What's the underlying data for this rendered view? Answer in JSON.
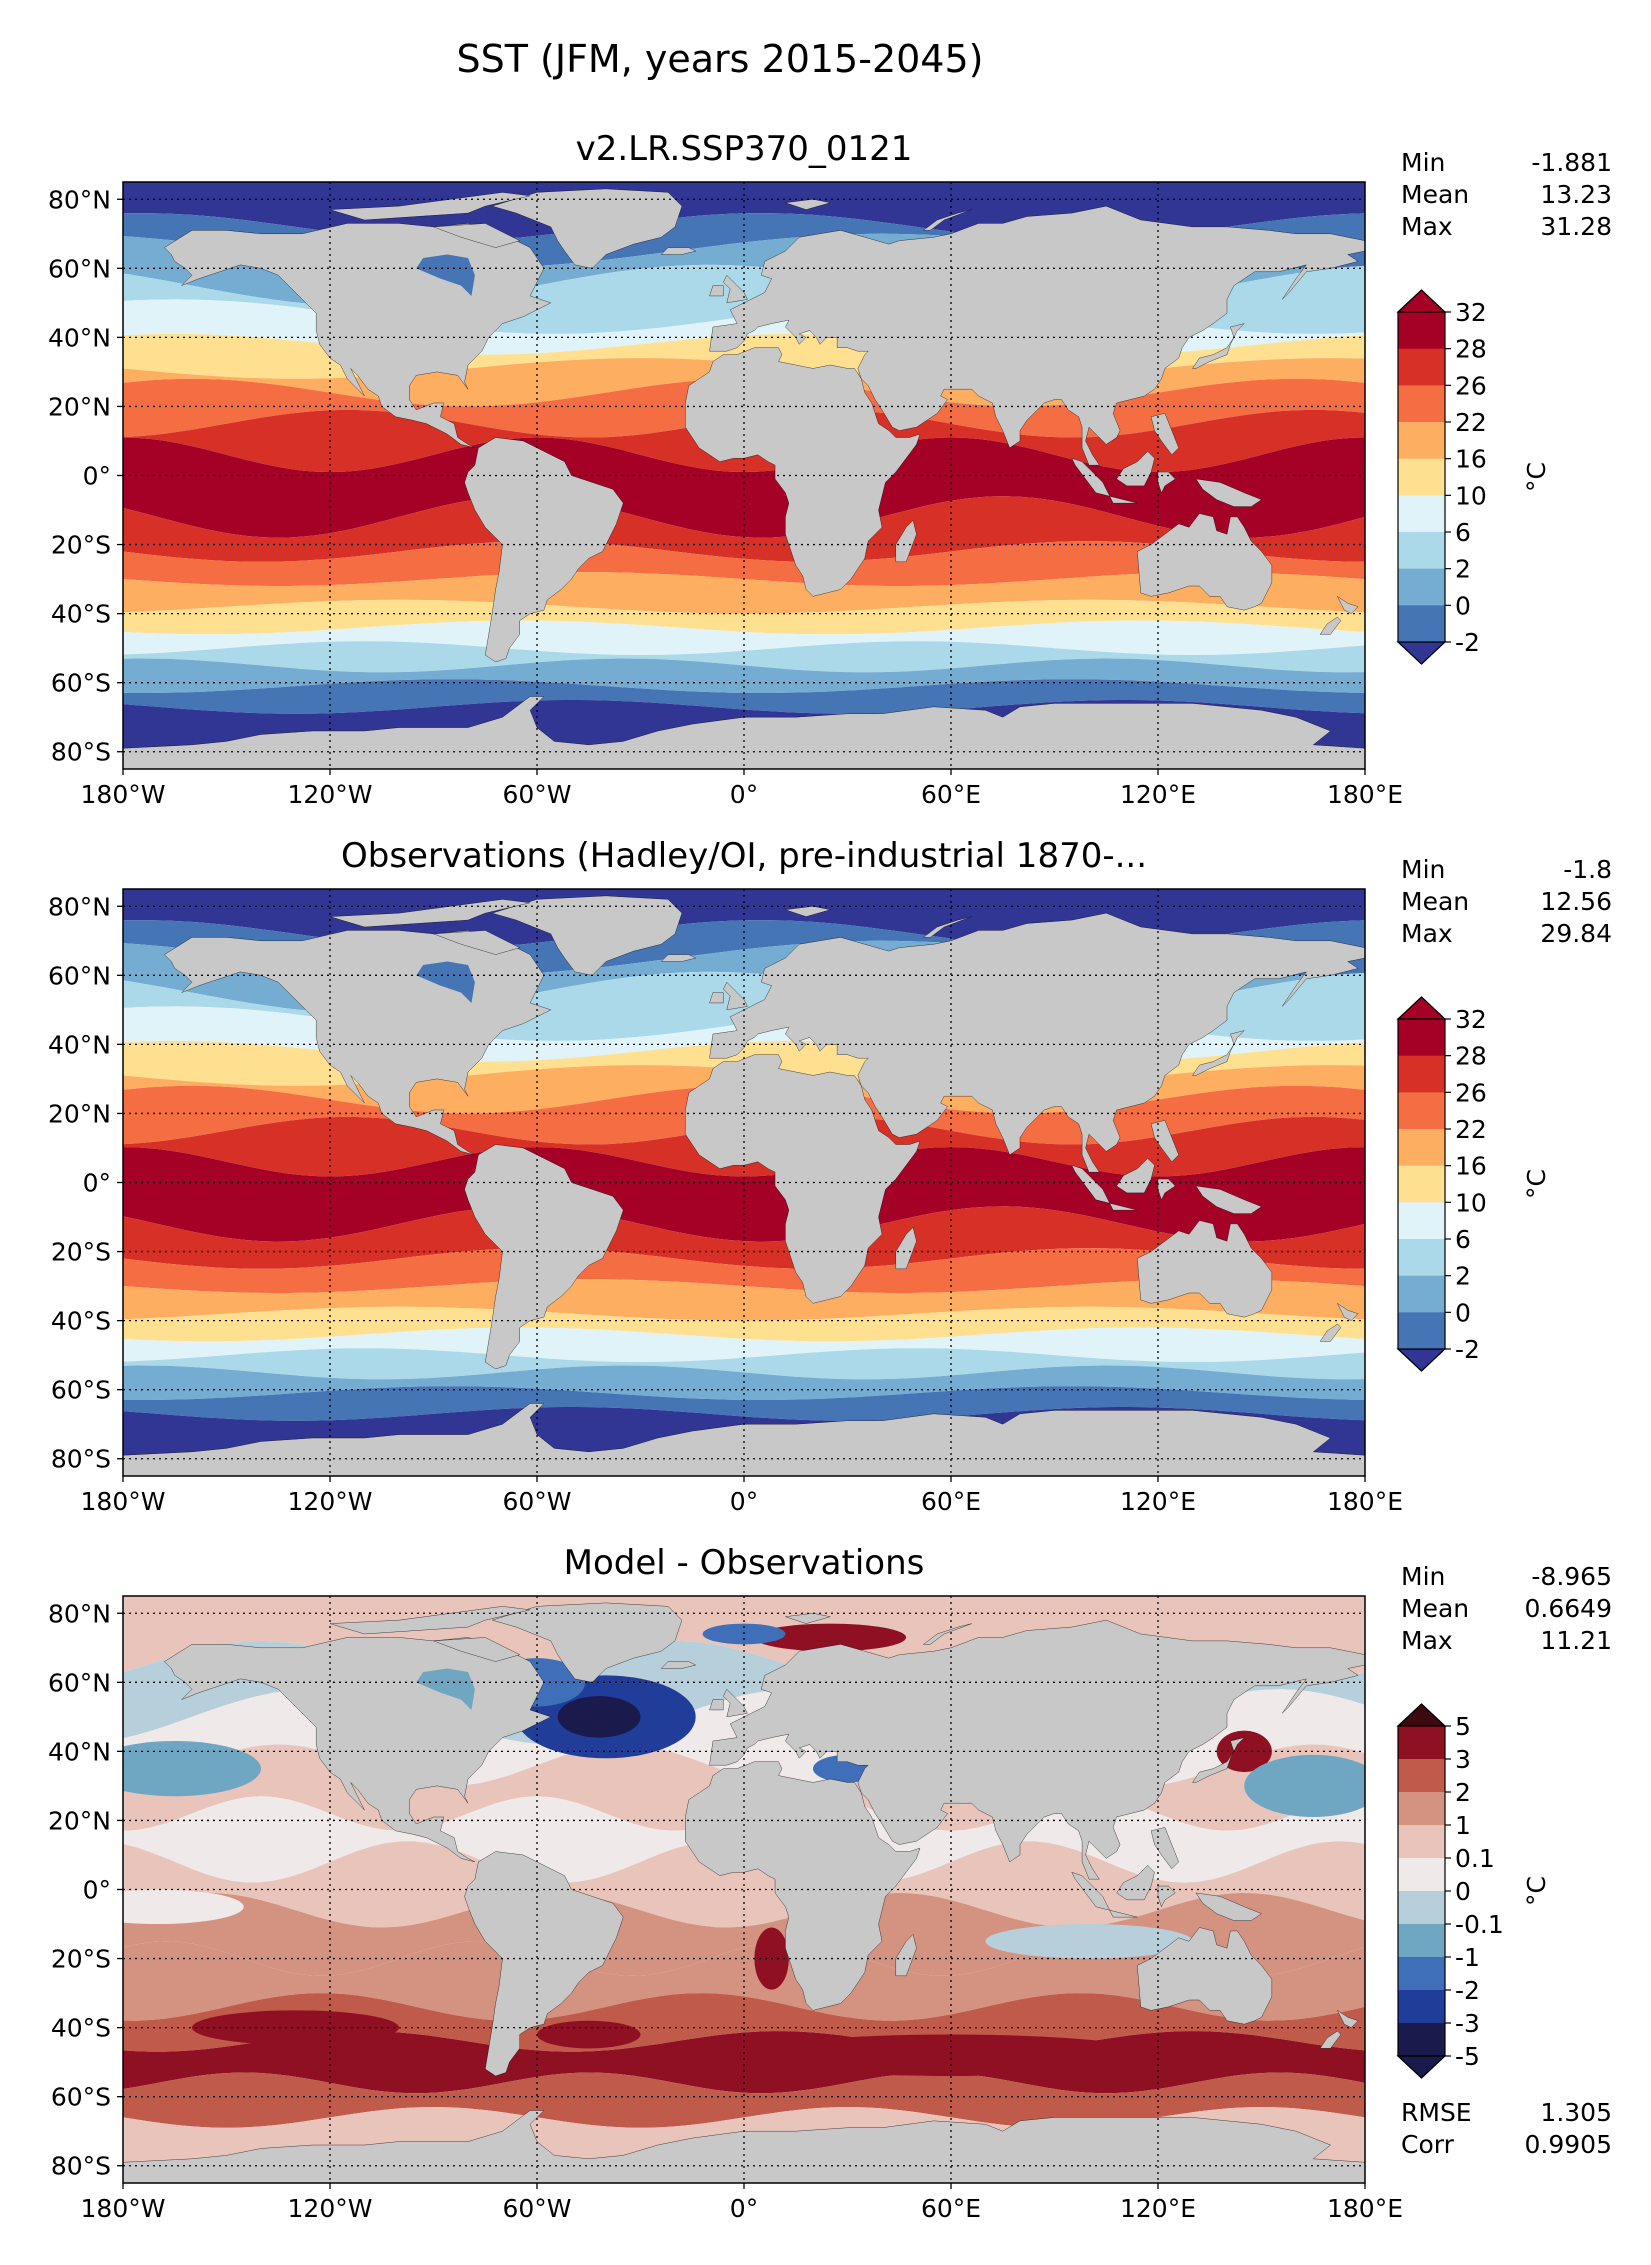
{
  "figure": {
    "title": "SST (JFM, years 2015-2045)"
  },
  "axes": {
    "lon_ticks": [
      "180°W",
      "120°W",
      "60°W",
      "0°",
      "60°E",
      "120°E",
      "180°E"
    ],
    "lat_ticks": [
      "80°N",
      "60°N",
      "40°N",
      "20°N",
      "0°",
      "20°S",
      "40°S",
      "60°S",
      "80°S"
    ],
    "lon_values": [
      -180,
      -120,
      -60,
      0,
      60,
      120,
      180
    ],
    "lat_values": [
      80,
      60,
      40,
      20,
      0,
      -20,
      -40,
      -60,
      -80
    ],
    "xlim": [
      -180,
      180
    ],
    "ylim": [
      -85,
      85
    ],
    "grid": "dotted"
  },
  "colors": {
    "land": "#c8c8c8",
    "sst_levels": [
      "#313695",
      "#4575b4",
      "#74add1",
      "#abd9e9",
      "#e0f3f8",
      "#fee090",
      "#fdae61",
      "#f46d43",
      "#d73027",
      "#a50026"
    ],
    "diff_levels": [
      "#1a1a4d",
      "#1f3d99",
      "#3e6fb8",
      "#6fa6c2",
      "#b7cfdb",
      "#efe9ea",
      "#e8c4bb",
      "#d49380",
      "#c05a4b",
      "#8e1022",
      "#3b0a10"
    ]
  },
  "chart_data": [
    {
      "type": "heatmap",
      "title": "v2.LR.SSP370_0121",
      "units": "°C",
      "colorbar_ticks": [
        "32",
        "28",
        "26",
        "22",
        "16",
        "10",
        "6",
        "2",
        "0",
        "-2"
      ],
      "stats": [
        {
          "label": "Min",
          "value": "-1.881"
        },
        {
          "label": "Mean",
          "value": "13.23"
        },
        {
          "label": "Max",
          "value": "31.28"
        }
      ]
    },
    {
      "type": "heatmap",
      "title": "Observations (Hadley/OI, pre-industrial 1870-...",
      "units": "°C",
      "colorbar_ticks": [
        "32",
        "28",
        "26",
        "22",
        "16",
        "10",
        "6",
        "2",
        "0",
        "-2"
      ],
      "stats": [
        {
          "label": "Min",
          "value": "-1.8"
        },
        {
          "label": "Mean",
          "value": "12.56"
        },
        {
          "label": "Max",
          "value": "29.84"
        }
      ]
    },
    {
      "type": "heatmap",
      "title": "Model - Observations",
      "units": "°C",
      "colorbar_ticks": [
        "5",
        "3",
        "2",
        "1",
        "0.1",
        "0",
        "-0.1",
        "-1",
        "-2",
        "-3",
        "-5"
      ],
      "stats": [
        {
          "label": "Min",
          "value": "-8.965"
        },
        {
          "label": "Mean",
          "value": "0.6649"
        },
        {
          "label": "Max",
          "value": "11.21"
        }
      ],
      "extra_stats": [
        {
          "label": "RMSE",
          "value": "1.305"
        },
        {
          "label": "Corr",
          "value": "0.9905"
        }
      ]
    }
  ]
}
